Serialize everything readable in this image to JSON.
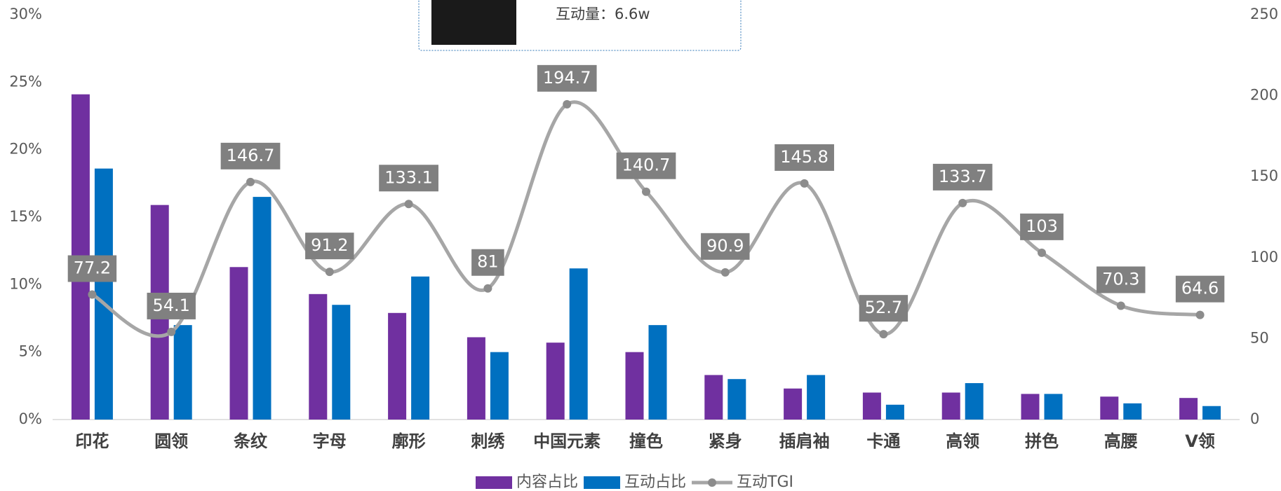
{
  "tooltip": {
    "text": "互动量：6.6w"
  },
  "chart_data": {
    "type": "bar",
    "categories": [
      "印花",
      "圆领",
      "条纹",
      "字母",
      "廓形",
      "刺绣",
      "中国元素",
      "撞色",
      "紧身",
      "插肩袖",
      "卡通",
      "高领",
      "拼色",
      "高腰",
      "V领"
    ],
    "series": [
      {
        "name": "内容占比",
        "color": "#7030a0",
        "values": [
          24.1,
          15.9,
          11.3,
          9.3,
          7.9,
          6.1,
          5.7,
          5.0,
          3.3,
          2.3,
          2.0,
          2.0,
          1.9,
          1.7,
          1.6
        ]
      },
      {
        "name": "互动占比",
        "color": "#0070c0",
        "values": [
          18.6,
          7.0,
          16.5,
          8.5,
          10.6,
          5.0,
          11.2,
          7.0,
          3.0,
          3.3,
          1.1,
          2.7,
          1.9,
          1.2,
          1.0
        ]
      },
      {
        "name": "互动TGI",
        "type": "line",
        "axis": "y2",
        "color": "#a6a6a6",
        "marker_color": "#8c8c8c",
        "values": [
          77.2,
          54.1,
          146.7,
          91.2,
          133.1,
          81.0,
          194.7,
          140.7,
          90.9,
          145.8,
          52.7,
          133.7,
          103.0,
          70.3,
          64.6
        ]
      }
    ],
    "ylim": [
      0,
      30
    ],
    "yticks": [
      {
        "value": 0,
        "label": "0%"
      },
      {
        "value": 5,
        "label": "5%"
      },
      {
        "value": 10,
        "label": "10%"
      },
      {
        "value": 15,
        "label": "15%"
      },
      {
        "value": 20,
        "label": "20%"
      },
      {
        "value": 25,
        "label": "25%"
      },
      {
        "value": 30,
        "label": "30%"
      }
    ],
    "y2lim": [
      0,
      250
    ],
    "y2ticks": [
      0,
      50,
      100,
      150,
      200,
      250
    ],
    "grid": false,
    "legend": "bottom"
  }
}
